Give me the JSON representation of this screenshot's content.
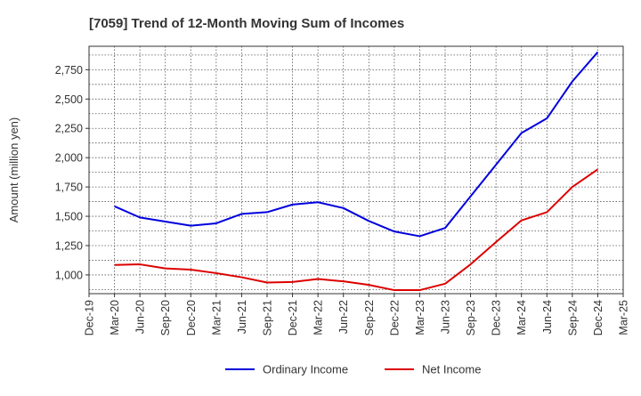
{
  "chart_data": {
    "type": "line",
    "title": "[7059]  Trend of 12-Month Moving Sum of Incomes",
    "xlabel": "",
    "ylabel": "Amount (million yen)",
    "ylim": [
      840,
      2950
    ],
    "yticks": [
      1000,
      1250,
      1500,
      1750,
      2000,
      2250,
      2500,
      2750
    ],
    "ytick_labels": [
      "1,000",
      "1,250",
      "1,500",
      "1,750",
      "2,000",
      "2,250",
      "2,500",
      "2,750"
    ],
    "grid": true,
    "legend_position": "bottom-center",
    "categories": [
      "Dec-19",
      "Mar-20",
      "Jun-20",
      "Sep-20",
      "Dec-20",
      "Mar-21",
      "Jun-21",
      "Sep-21",
      "Dec-21",
      "Mar-22",
      "Jun-22",
      "Sep-22",
      "Dec-22",
      "Mar-23",
      "Jun-23",
      "Sep-23",
      "Dec-23",
      "Mar-24",
      "Jun-24",
      "Sep-24",
      "Dec-24",
      "Mar-25"
    ],
    "series": [
      {
        "name": "Ordinary Income",
        "color": "#0000dd",
        "values": [
          null,
          1585,
          1490,
          1455,
          1420,
          1440,
          1520,
          1535,
          1600,
          1620,
          1570,
          1460,
          1370,
          1330,
          1400,
          1670,
          1940,
          2210,
          2335,
          2650,
          2900,
          null
        ]
      },
      {
        "name": "Net Income",
        "color": "#dd0000",
        "values": [
          null,
          1085,
          1090,
          1055,
          1045,
          1015,
          980,
          935,
          940,
          965,
          945,
          915,
          870,
          870,
          925,
          1090,
          1280,
          1465,
          1535,
          1750,
          1900,
          null
        ]
      }
    ]
  }
}
